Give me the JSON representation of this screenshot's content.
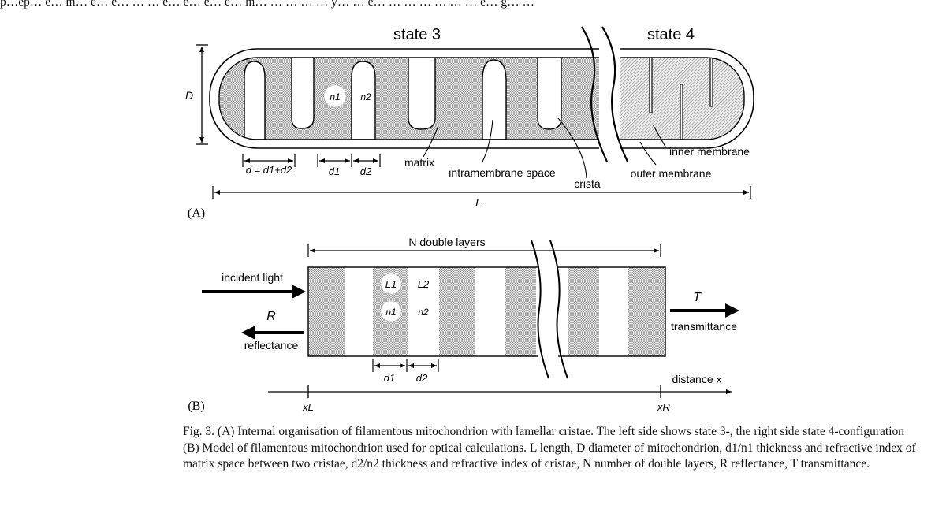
{
  "top_text": "p…ep… e… m… e… e… … … e… e… e… e… m… … … … … y… … e… … … … … … … e… g… …",
  "panel_a": {
    "state3": "state 3",
    "state4": "state 4",
    "D": "D",
    "n1": "n1",
    "n2": "n2",
    "d_eq": "d = d1+d2",
    "d1": "d1",
    "d2": "d2",
    "matrix": "matrix",
    "intramembrane": "intramembrane space",
    "crista": "crista",
    "inner_membrane": "inner membrane",
    "outer_membrane": "outer membrane",
    "L": "L",
    "tag": "(A)"
  },
  "panel_b": {
    "n_layers": "N double layers",
    "incident": "incident light",
    "R": "R",
    "reflectance": "reflectance",
    "L1": "L1",
    "L2": "L2",
    "n1": "n1",
    "n2": "n2",
    "T": "T",
    "transmittance": "transmittance",
    "d1": "d1",
    "d2": "d2",
    "distance": "distance x",
    "xL": "xL",
    "xR": "xR",
    "tag": "(B)"
  },
  "caption": {
    "line1": "Fig. 3.  (A) Internal organisation of filamentous mitochondrion with lamellar cristae. The left side shows state 3-, the right side state 4-configuration",
    "line2": "(B) Model of filamentous mitochondrion used for optical calculations. L length, D diameter of mitochondrion, d1/n1 thickness and refractive index of",
    "line3": "matrix space between two cristae, d2/n2 thickness and refractive index of cristae, N number of double layers, R reflectance, T transmittance."
  }
}
